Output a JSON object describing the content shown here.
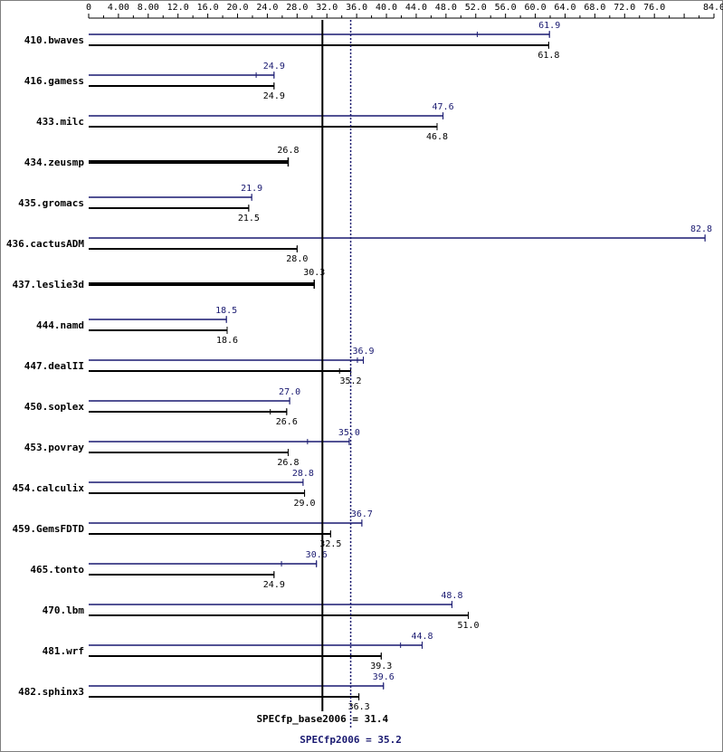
{
  "chart_data": {
    "type": "bar",
    "orientation": "horizontal",
    "xlim": [
      0,
      84
    ],
    "x_ticks": [
      "0",
      "4.00",
      "8.00",
      "12.0",
      "16.0",
      "20.0",
      "24.0",
      "28.0",
      "32.0",
      "36.0",
      "40.0",
      "44.0",
      "48.0",
      "52.0",
      "56.0",
      "60.0",
      "64.0",
      "68.0",
      "72.0",
      "76.0",
      "84.0"
    ],
    "categories": [
      "410.bwaves",
      "416.gamess",
      "433.milc",
      "434.zeusmp",
      "435.gromacs",
      "436.cactusADM",
      "437.leslie3d",
      "444.namd",
      "447.dealII",
      "450.soplex",
      "453.povray",
      "454.calculix",
      "459.GemsFDTD",
      "465.tonto",
      "470.lbm",
      "481.wrf",
      "482.sphinx3"
    ],
    "series": [
      {
        "key": "peak",
        "color": "#191970",
        "values": [
          61.9,
          24.9,
          47.6,
          null,
          21.9,
          82.8,
          null,
          18.5,
          36.9,
          27.0,
          35.0,
          28.8,
          36.7,
          30.6,
          48.8,
          44.8,
          39.6
        ],
        "labels": [
          "61.9",
          "24.9",
          "47.6",
          "",
          "21.9",
          "82.8",
          "",
          "18.5",
          "36.9",
          "27.0",
          "35.0",
          "28.8",
          "36.7",
          "30.6",
          "48.8",
          "44.8",
          "39.6"
        ],
        "run_ticks": [
          [
            52.2,
            61.9
          ],
          [
            22.5,
            24.9
          ],
          [
            47.6
          ],
          [],
          [
            21.9
          ],
          [
            82.8
          ],
          [],
          [
            18.5
          ],
          [
            36.1,
            36.9
          ],
          [
            27.0
          ],
          [
            29.4,
            35.0
          ],
          [
            28.8
          ],
          [
            36.7
          ],
          [
            25.9,
            30.6
          ],
          [
            48.8
          ],
          [
            41.9,
            44.8
          ],
          [
            39.6
          ]
        ]
      },
      {
        "key": "base",
        "color": "#000000",
        "values": [
          61.8,
          24.9,
          46.8,
          26.8,
          21.5,
          28.0,
          30.3,
          18.6,
          35.2,
          26.6,
          26.8,
          29.0,
          32.5,
          24.9,
          51.0,
          39.3,
          36.3
        ],
        "labels": [
          "61.8",
          "24.9",
          "46.8",
          "26.8",
          "21.5",
          "28.0",
          "30.3",
          "18.6",
          "35.2",
          "26.6",
          "26.8",
          "29.0",
          "32.5",
          "24.9",
          "51.0",
          "39.3",
          "36.3"
        ],
        "run_ticks": [
          [
            61.8
          ],
          [
            24.9
          ],
          [
            46.8
          ],
          [
            26.8
          ],
          [
            21.5
          ],
          [
            28.0
          ],
          [
            30.3
          ],
          [
            18.6
          ],
          [
            33.7,
            35.2
          ],
          [
            24.4,
            26.6
          ],
          [
            26.8
          ],
          [
            29.0
          ],
          [
            32.5
          ],
          [
            24.9
          ],
          [
            51.0
          ],
          [
            39.3
          ],
          [
            36.3
          ]
        ]
      }
    ],
    "single_bar_categories": [
      "434.zeusmp",
      "437.leslie3d"
    ],
    "reference_lines": [
      {
        "key": "base",
        "value": 31.4,
        "label": "SPECfp_base2006 = 31.4",
        "color": "#000000",
        "style": "solid"
      },
      {
        "key": "peak",
        "value": 35.2,
        "label": "SPECfp2006 = 35.2",
        "color": "#191970",
        "style": "dotted"
      }
    ],
    "grid": false,
    "legend": "none"
  }
}
